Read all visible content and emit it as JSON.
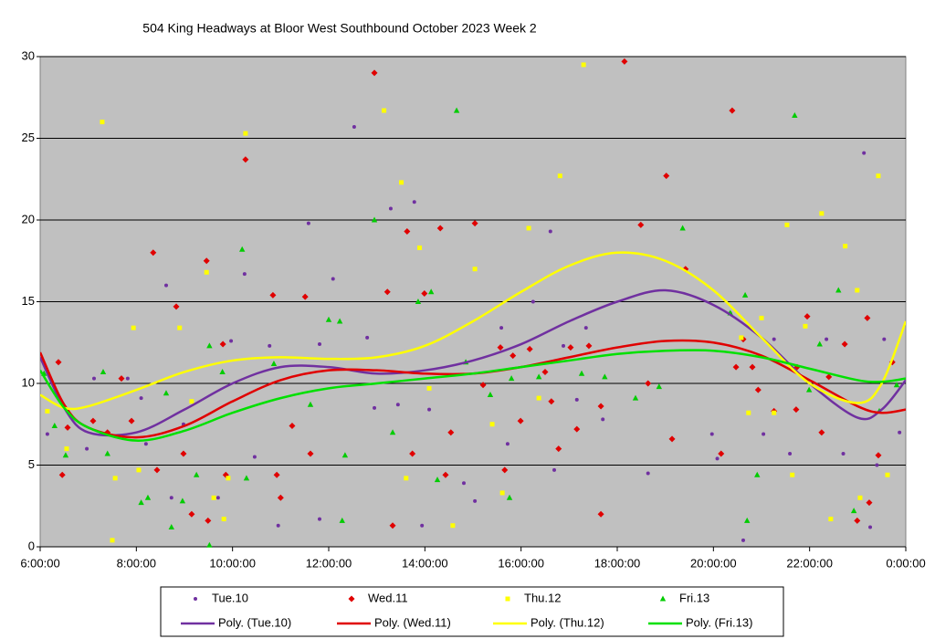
{
  "chart_data": {
    "type": "scatter",
    "title": "504 King Headways at Bloor West Southbound October 2023  Week 2",
    "xlim": [
      6,
      24
    ],
    "xticks": [
      {
        "value": 6,
        "label": "6:00:00"
      },
      {
        "value": 8,
        "label": "8:00:00"
      },
      {
        "value": 10,
        "label": "10:00:00"
      },
      {
        "value": 12,
        "label": "12:00:00"
      },
      {
        "value": 14,
        "label": "14:00:00"
      },
      {
        "value": 16,
        "label": "16:00:00"
      },
      {
        "value": 18,
        "label": "18:00:00"
      },
      {
        "value": 20,
        "label": "20:00:00"
      },
      {
        "value": 22,
        "label": "22:00:00"
      },
      {
        "value": 24,
        "label": "0:00:00"
      }
    ],
    "ylim": [
      0,
      30
    ],
    "yticks": [
      0,
      5,
      10,
      15,
      20,
      25,
      30
    ],
    "grid": true,
    "background": "#c0c0c0",
    "series": [
      {
        "name": "Tue.10",
        "color": "#7030a0",
        "marker": "circle",
        "x": [
          6.15,
          7.12,
          6.97,
          7.82,
          8.2,
          8.1,
          8.62,
          8.73,
          8.98,
          9.7,
          9.97,
          10.25,
          10.46,
          10.77,
          10.95,
          11.58,
          11.81,
          11.81,
          12.09,
          12.53,
          12.8,
          12.95,
          13.29,
          13.44,
          13.78,
          13.94,
          14.09,
          14.81,
          15.04,
          15.59,
          15.72,
          16.25,
          16.61,
          16.69,
          16.88,
          17.16,
          17.35,
          17.7,
          18.64,
          19.97,
          20.08,
          20.35,
          20.62,
          21.04,
          21.26,
          21.59,
          22.35,
          22.7,
          23.13,
          23.26,
          23.4,
          23.55,
          23.87
        ],
        "values": [
          6.9,
          10.3,
          6.0,
          10.3,
          6.3,
          9.1,
          16.0,
          3.0,
          7.5,
          3.0,
          12.6,
          16.7,
          5.5,
          12.3,
          1.3,
          19.8,
          12.4,
          1.7,
          16.4,
          25.7,
          12.8,
          8.5,
          20.7,
          8.7,
          21.1,
          1.3,
          8.4,
          3.9,
          2.8,
          13.4,
          6.3,
          15.0,
          19.3,
          4.7,
          12.3,
          9.0,
          13.4,
          7.8,
          4.5,
          6.9,
          5.4,
          14.3,
          0.4,
          6.9,
          12.7,
          5.7,
          12.7,
          5.7,
          24.1,
          1.2,
          5.0,
          12.7,
          7.0
        ]
      },
      {
        "name": "Wed.11",
        "color": "#e00000",
        "marker": "diamond",
        "x": [
          6.38,
          6.46,
          6.57,
          7.1,
          7.4,
          7.69,
          7.9,
          8.35,
          8.43,
          8.83,
          8.98,
          9.15,
          9.49,
          9.46,
          9.8,
          9.86,
          10.27,
          10.84,
          10.92,
          11.0,
          11.24,
          11.51,
          11.62,
          12.95,
          13.22,
          13.33,
          13.63,
          13.74,
          13.99,
          14.32,
          14.43,
          14.54,
          15.04,
          15.21,
          15.57,
          15.66,
          15.83,
          15.99,
          16.18,
          16.5,
          16.63,
          16.78,
          17.03,
          17.16,
          17.41,
          17.66,
          17.66,
          18.15,
          18.49,
          18.64,
          19.02,
          19.14,
          19.42,
          20.16,
          20.39,
          20.47,
          20.62,
          20.81,
          20.93,
          21.26,
          21.74,
          21.72,
          21.95,
          22.25,
          22.4,
          22.73,
          22.99,
          23.24,
          23.43,
          23.2,
          23.72
        ],
        "values": [
          11.3,
          4.4,
          7.3,
          7.7,
          7.0,
          10.3,
          7.7,
          18.0,
          4.7,
          14.7,
          5.7,
          2.0,
          1.6,
          17.5,
          12.4,
          4.4,
          23.7,
          15.4,
          4.4,
          3.0,
          7.4,
          15.3,
          5.7,
          29.0,
          15.6,
          1.3,
          19.3,
          5.7,
          15.5,
          19.5,
          4.4,
          7.0,
          19.8,
          9.9,
          12.2,
          4.7,
          11.7,
          7.7,
          12.1,
          10.7,
          8.9,
          6.0,
          12.2,
          7.2,
          12.3,
          8.6,
          2.0,
          29.7,
          19.7,
          10.0,
          22.7,
          6.6,
          17.0,
          5.7,
          26.7,
          11.0,
          12.7,
          11.0,
          9.6,
          8.3,
          11.0,
          8.4,
          14.1,
          7.0,
          10.4,
          12.4,
          1.6,
          2.7,
          5.6,
          14.0,
          11.3
        ]
      },
      {
        "name": "Thu.12",
        "color": "#ffff00",
        "marker": "square",
        "x": [
          6.15,
          6.55,
          7.29,
          7.5,
          7.56,
          7.94,
          8.05,
          8.9,
          9.15,
          9.46,
          9.61,
          9.82,
          9.91,
          10.27,
          13.15,
          13.51,
          13.61,
          13.89,
          14.09,
          14.58,
          15.04,
          15.4,
          15.61,
          16.16,
          16.37,
          16.81,
          17.3,
          20.58,
          20.73,
          21.0,
          21.26,
          21.53,
          21.64,
          21.91,
          22.25,
          22.44,
          22.74,
          22.99,
          23.05,
          23.43,
          23.62
        ],
        "values": [
          8.3,
          6.0,
          26.0,
          0.4,
          4.2,
          13.4,
          4.7,
          13.4,
          8.9,
          16.8,
          3.0,
          1.7,
          4.2,
          25.3,
          26.7,
          22.3,
          4.2,
          18.3,
          9.7,
          1.3,
          17.0,
          7.5,
          3.3,
          19.5,
          9.1,
          22.7,
          29.5,
          12.8,
          8.2,
          14.0,
          8.2,
          19.7,
          4.4,
          13.5,
          20.4,
          1.7,
          18.4,
          15.7,
          3.0,
          22.7,
          4.4
        ]
      },
      {
        "name": "Fri.13",
        "color": "#00cc00",
        "marker": "triangle",
        "x": [
          6.08,
          6.3,
          6.53,
          7.31,
          7.4,
          8.1,
          8.24,
          8.62,
          8.73,
          8.96,
          9.25,
          9.52,
          9.52,
          9.79,
          10.2,
          10.29,
          10.86,
          11.62,
          12.0,
          12.23,
          12.28,
          12.34,
          12.95,
          13.33,
          13.86,
          14.13,
          14.26,
          14.66,
          14.85,
          15.36,
          15.76,
          15.8,
          16.37,
          17.26,
          17.74,
          18.38,
          18.87,
          19.36,
          20.35,
          20.66,
          20.7,
          20.91,
          21.69,
          21.99,
          22.21,
          22.6,
          22.92,
          23.45,
          23.81
        ],
        "values": [
          10.6,
          7.4,
          5.6,
          10.7,
          5.7,
          2.7,
          3.0,
          9.4,
          1.2,
          2.8,
          4.4,
          0.1,
          12.3,
          10.7,
          18.2,
          4.2,
          11.2,
          8.7,
          13.9,
          13.8,
          1.6,
          5.6,
          20.0,
          7.0,
          15.0,
          15.6,
          4.1,
          26.7,
          11.3,
          9.3,
          3.0,
          10.3,
          10.4,
          10.6,
          10.4,
          9.1,
          9.8,
          19.5,
          14.3,
          15.4,
          1.6,
          4.4,
          26.4,
          9.6,
          12.4,
          15.7,
          2.2,
          8.3,
          9.9
        ]
      }
    ],
    "trendlines": [
      {
        "name": "Poly. (Tue.10)",
        "color": "#7030a0",
        "x": [
          6,
          6.5,
          7,
          8,
          9,
          10,
          11,
          12,
          13,
          14,
          15,
          16,
          17,
          18,
          19,
          20,
          21,
          22,
          23,
          23.5,
          24
        ],
        "values": [
          11.6,
          8.5,
          7.0,
          7.0,
          8.4,
          10.0,
          11.0,
          11.0,
          10.6,
          10.8,
          11.4,
          12.4,
          13.8,
          15.0,
          15.7,
          14.8,
          12.8,
          10.0,
          7.9,
          8.4,
          10.2
        ]
      },
      {
        "name": "Poly. (Wed.11)",
        "color": "#e00000",
        "x": [
          6,
          6.5,
          7,
          8,
          9,
          10,
          11,
          12,
          13,
          14,
          15,
          16,
          17,
          18,
          19,
          20,
          21,
          22,
          23,
          23.5,
          24
        ],
        "values": [
          11.9,
          8.7,
          7.3,
          6.7,
          7.4,
          8.9,
          10.2,
          10.8,
          10.8,
          10.6,
          10.6,
          11.0,
          11.6,
          12.2,
          12.6,
          12.5,
          11.7,
          10.2,
          8.6,
          8.2,
          8.4
        ]
      },
      {
        "name": "Poly. (Thu.12)",
        "color": "#ffff00",
        "x": [
          6,
          6.5,
          7,
          8,
          9,
          10,
          11,
          12,
          13,
          14,
          15,
          16,
          17,
          18,
          19,
          20,
          21,
          22,
          23,
          23.5,
          24
        ],
        "values": [
          9.3,
          8.5,
          8.6,
          9.6,
          10.7,
          11.4,
          11.6,
          11.5,
          11.6,
          12.3,
          13.8,
          15.6,
          17.2,
          18.0,
          17.5,
          15.7,
          12.8,
          10.0,
          8.8,
          10.0,
          13.8
        ]
      },
      {
        "name": "Poly. (Fri.13)",
        "color": "#00e000",
        "x": [
          6,
          6.5,
          7,
          8,
          9,
          10,
          11,
          12,
          13,
          14,
          15,
          16,
          17,
          18,
          19,
          20,
          21,
          22,
          23,
          23.5,
          24
        ],
        "values": [
          10.8,
          8.5,
          7.3,
          6.5,
          7.1,
          8.2,
          9.1,
          9.7,
          10.0,
          10.3,
          10.6,
          11.0,
          11.4,
          11.8,
          12.0,
          12.0,
          11.6,
          10.9,
          10.2,
          10.1,
          10.3
        ]
      }
    ]
  }
}
